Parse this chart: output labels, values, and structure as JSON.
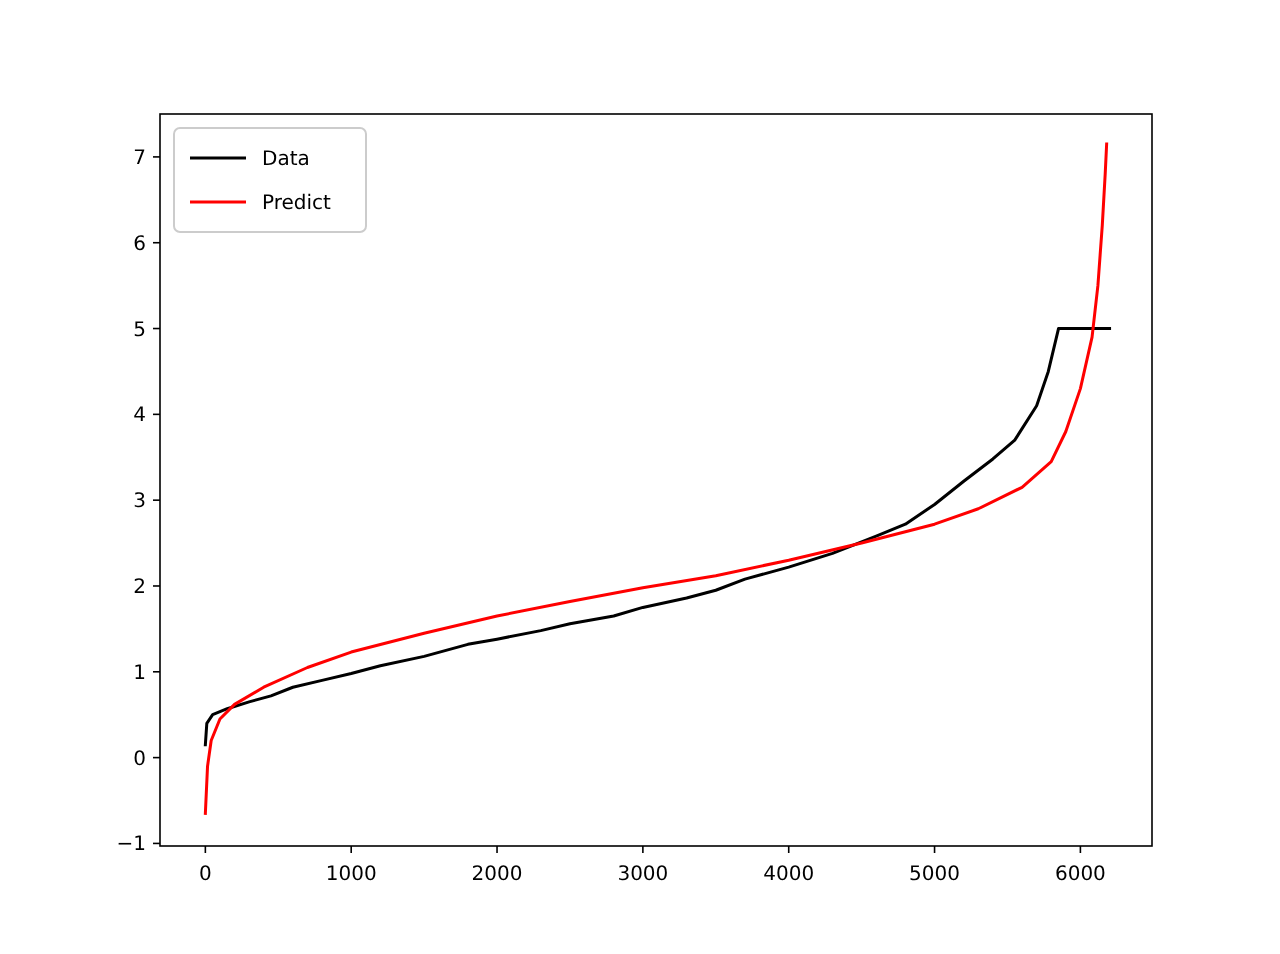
{
  "chart_data": {
    "type": "line",
    "xlim": [
      -311,
      6491
    ],
    "ylim": [
      -1.03,
      7.5
    ],
    "xticks": [
      0,
      1000,
      2000,
      3000,
      4000,
      5000,
      6000
    ],
    "yticks": [
      -1,
      0,
      1,
      2,
      3,
      4,
      5,
      6,
      7
    ],
    "legend": "top left",
    "grid": false,
    "series": [
      {
        "name": "Data",
        "color": "#000000",
        "x": [
          0,
          10,
          50,
          150,
          300,
          450,
          600,
          800,
          1000,
          1200,
          1500,
          1800,
          2000,
          2300,
          2500,
          2800,
          3000,
          3300,
          3500,
          3700,
          4000,
          4300,
          4600,
          4800,
          5000,
          5200,
          5400,
          5550,
          5700,
          5780,
          5850,
          6200
        ],
        "values": [
          0.15,
          0.4,
          0.5,
          0.57,
          0.65,
          0.72,
          0.82,
          0.9,
          0.98,
          1.07,
          1.18,
          1.32,
          1.38,
          1.48,
          1.56,
          1.65,
          1.75,
          1.86,
          1.95,
          2.08,
          2.22,
          2.38,
          2.58,
          2.72,
          2.95,
          3.22,
          3.48,
          3.7,
          4.1,
          4.5,
          5.0,
          5.0
        ]
      },
      {
        "name": "Predict",
        "color": "#ff0000",
        "x": [
          0,
          15,
          40,
          100,
          200,
          400,
          700,
          1000,
          1500,
          2000,
          2500,
          3000,
          3500,
          4000,
          4500,
          5000,
          5300,
          5600,
          5800,
          5900,
          6000,
          6080,
          6120,
          6150,
          6170,
          6180
        ],
        "values": [
          -0.65,
          -0.1,
          0.2,
          0.45,
          0.62,
          0.82,
          1.05,
          1.23,
          1.45,
          1.65,
          1.82,
          1.98,
          2.12,
          2.3,
          2.5,
          2.72,
          2.9,
          3.15,
          3.45,
          3.8,
          4.3,
          4.9,
          5.5,
          6.2,
          6.8,
          7.15
        ]
      }
    ]
  }
}
